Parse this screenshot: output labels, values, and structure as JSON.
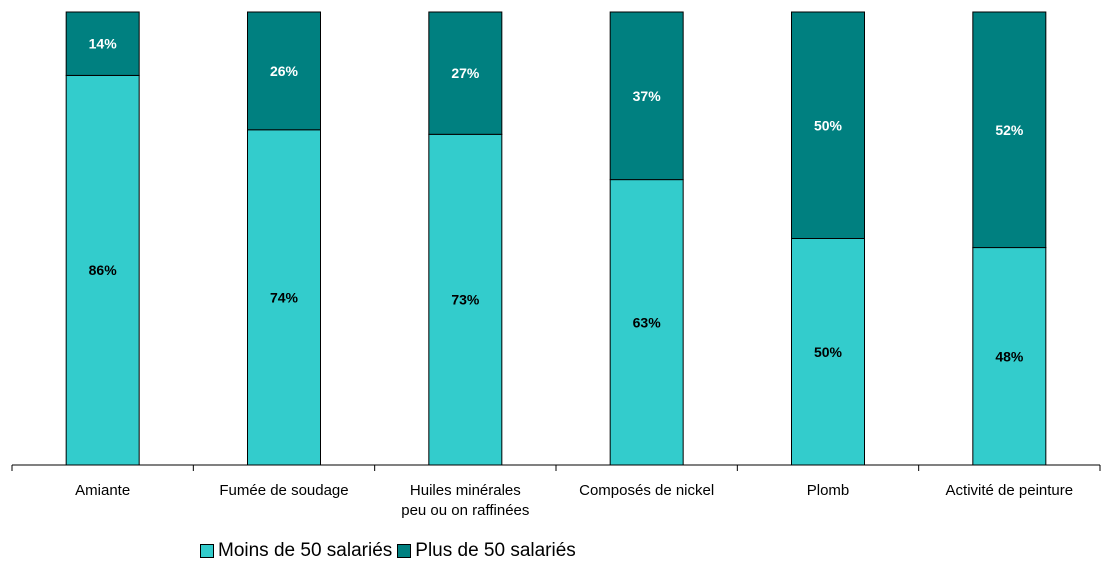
{
  "chart_data": {
    "type": "bar",
    "stacked": true,
    "categories": [
      "Amiante",
      "Fumée de soudage",
      "Huiles minérales peu ou on raffinées",
      "Composés de nickel",
      "Plomb",
      "Activité de peinture"
    ],
    "category_lines": [
      [
        "Amiante"
      ],
      [
        "Fumée de soudage"
      ],
      [
        "Huiles minérales",
        "peu ou on raffinées"
      ],
      [
        "Composés de nickel"
      ],
      [
        "Plomb"
      ],
      [
        "Activité de peinture"
      ]
    ],
    "series": [
      {
        "name": "Moins de 50 salariés",
        "values": [
          86,
          74,
          73,
          63,
          50,
          48
        ],
        "labels": [
          "86%",
          "74%",
          "73%",
          "63%",
          "50%",
          "48%"
        ],
        "color": "#33CCCC",
        "label_color": "#000000"
      },
      {
        "name": "Plus de 50 salariés",
        "values": [
          14,
          26,
          27,
          37,
          50,
          52
        ],
        "labels": [
          "14%",
          "26%",
          "27%",
          "37%",
          "50%",
          "52%"
        ],
        "color": "#008080",
        "label_color": "#ffffff"
      }
    ],
    "ylim": [
      0,
      100
    ],
    "grid": false,
    "legend_position": "bottom"
  }
}
